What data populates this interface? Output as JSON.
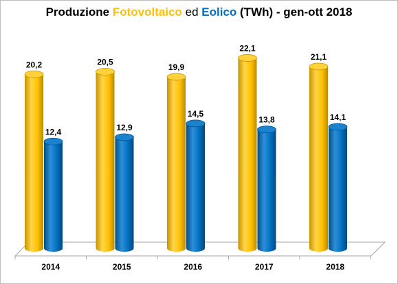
{
  "chart_data": {
    "type": "bar",
    "title_parts": [
      {
        "text": "Produzione ",
        "style": "plain-bold"
      },
      {
        "text": "Fotovoltaico",
        "style": "pv"
      },
      {
        "text": " ed ",
        "style": "plain"
      },
      {
        "text": "Eolico",
        "style": "wind"
      },
      {
        "text": " (TWh) - gen-ott 2018",
        "style": "plain-bold"
      }
    ],
    "categories": [
      "2014",
      "2015",
      "2016",
      "2017",
      "2018"
    ],
    "series": [
      {
        "name": "Fotovoltaico",
        "color": "#ffc000",
        "values": [
          20.2,
          20.5,
          19.9,
          22.1,
          21.1
        ],
        "labels": [
          "20,2",
          "20,5",
          "19,9",
          "22,1",
          "21,1"
        ]
      },
      {
        "name": "Eolico",
        "color": "#0070c0",
        "values": [
          12.4,
          12.9,
          14.5,
          13.8,
          14.1
        ],
        "labels": [
          "12,4",
          "12,9",
          "14,5",
          "13,8",
          "14,1"
        ]
      }
    ],
    "ylim": [
      0,
      25
    ],
    "grid": false,
    "legend": "none"
  }
}
